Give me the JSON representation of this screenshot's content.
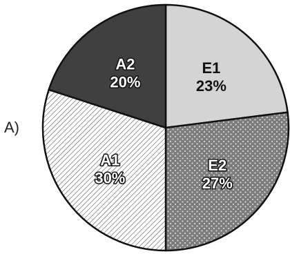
{
  "panel_label": "A)",
  "chart_data": {
    "type": "pie",
    "slices": [
      {
        "category": "E1",
        "percent_label": "23%",
        "value": 23,
        "color": "#d4d4d4",
        "pattern": "solid-light"
      },
      {
        "category": "E2",
        "percent_label": "27%",
        "value": 27,
        "color": "#808080",
        "pattern": "dotted"
      },
      {
        "category": "A1",
        "percent_label": "30%",
        "value": 30,
        "color": "#ffffff",
        "pattern": "hatched"
      },
      {
        "category": "A2",
        "percent_label": "20%",
        "value": 20,
        "color": "#404040",
        "pattern": "solid-dark"
      }
    ],
    "start": "12 o'clock",
    "direction": "clockwise"
  }
}
